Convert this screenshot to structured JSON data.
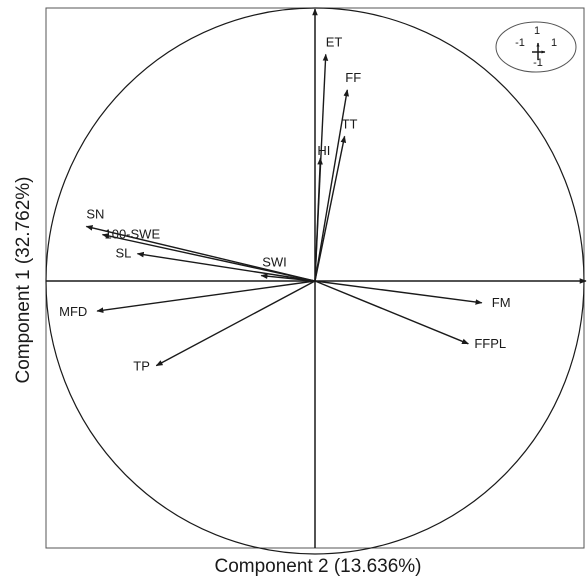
{
  "chart_data": {
    "type": "biplot",
    "xlabel": "Component 2 (13.636%)",
    "ylabel": "Component 1 (32.762%)",
    "xlim": [
      -1,
      1
    ],
    "ylim": [
      -1,
      1
    ],
    "unit_circle": true,
    "axes_through_origin": true,
    "grid": false,
    "inset": {
      "position": "top-right",
      "labels": [
        "1",
        "-1",
        "1",
        "-1"
      ]
    },
    "vectors": [
      {
        "name": "ET",
        "x": 0.04,
        "y": 0.83
      },
      {
        "name": "FF",
        "x": 0.12,
        "y": 0.7
      },
      {
        "name": "TT",
        "x": 0.11,
        "y": 0.53
      },
      {
        "name": "HI",
        "x": 0.02,
        "y": 0.45
      },
      {
        "name": "SN",
        "x": -0.85,
        "y": 0.2
      },
      {
        "name": "100-SWE",
        "x": -0.79,
        "y": 0.17
      },
      {
        "name": "SL",
        "x": -0.66,
        "y": 0.1
      },
      {
        "name": "SWI",
        "x": -0.2,
        "y": 0.02
      },
      {
        "name": "MFD",
        "x": -0.81,
        "y": -0.11
      },
      {
        "name": "TP",
        "x": -0.59,
        "y": -0.31
      },
      {
        "name": "FM",
        "x": 0.62,
        "y": -0.08
      },
      {
        "name": "FFPL",
        "x": 0.57,
        "y": -0.23
      }
    ]
  }
}
